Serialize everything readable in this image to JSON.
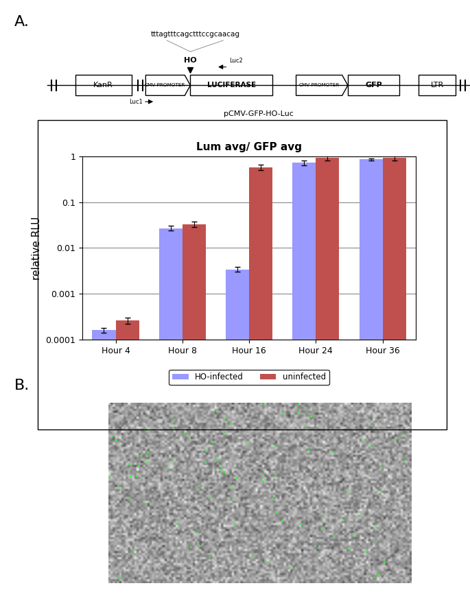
{
  "panel_labels": [
    "A.",
    "B."
  ],
  "diagram": {
    "elements": [
      "KanR",
      "CMV-PROMOTER",
      "LUCIFERASE",
      "CMV-PROMOTER",
      "GFP",
      "LTR"
    ],
    "site": {
      "label": "HO",
      "sequence": "tttagtttcagctttccgcaacag"
    },
    "primers": [
      "Luc1",
      "Luc2"
    ],
    "name": "pCMV-GFP-HO-Luc"
  },
  "chart_data": {
    "type": "bar",
    "title": "Lum avg/ GFP avg",
    "y_label": "relative RLU",
    "categories": [
      "Hour 4",
      "Hour 8",
      "Hour 16",
      "Hour 24",
      "Hour 36"
    ],
    "series": [
      {
        "name": "HO-infected",
        "color": "#9999ff",
        "values": [
          0.00016,
          0.027,
          0.0034,
          0.72,
          0.85
        ],
        "error": [
          2e-05,
          0.003,
          0.0004,
          0.08,
          0.03
        ]
      },
      {
        "name": "uninfected",
        "color": "#c0504d",
        "values": [
          0.00026,
          0.033,
          0.58,
          0.92,
          0.92
        ],
        "error": [
          4e-05,
          0.005,
          0.08,
          0.12,
          0.1
        ]
      }
    ],
    "log": "y",
    "ylim": [
      0.0001,
      1
    ],
    "yticks": [
      0.0001,
      0.001,
      0.01,
      0.1,
      1
    ],
    "grid": true,
    "legend": "lower center"
  }
}
